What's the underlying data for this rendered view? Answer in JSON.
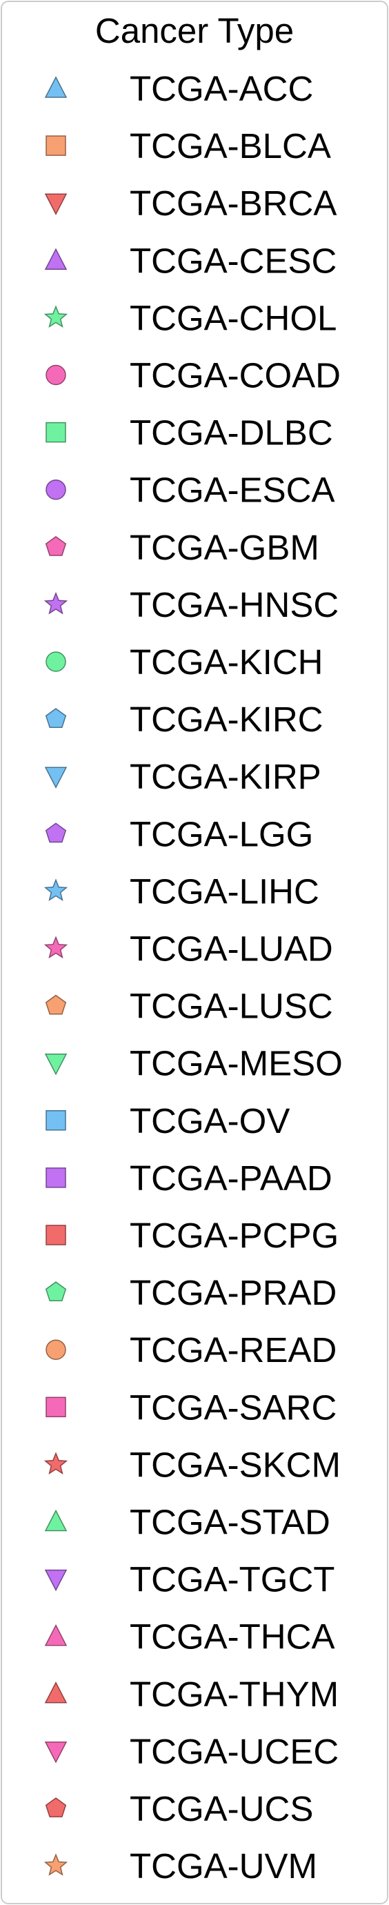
{
  "chart_data": {
    "type": "scatter",
    "legend": {
      "title": "Cancer Type",
      "entries": [
        {
          "label": "TCGA-ACC",
          "marker": "triangle-up",
          "color": "#74c0f2"
        },
        {
          "label": "TCGA-BLCA",
          "marker": "square",
          "color": "#f7a071"
        },
        {
          "label": "TCGA-BRCA",
          "marker": "triangle-down",
          "color": "#f26b6b"
        },
        {
          "label": "TCGA-CESC",
          "marker": "triangle-up",
          "color": "#c072f2"
        },
        {
          "label": "TCGA-CHOL",
          "marker": "star",
          "color": "#6ff2a0"
        },
        {
          "label": "TCGA-COAD",
          "marker": "circle",
          "color": "#f56ab8"
        },
        {
          "label": "TCGA-DLBC",
          "marker": "square",
          "color": "#6ff2a0"
        },
        {
          "label": "TCGA-ESCA",
          "marker": "circle",
          "color": "#c072f2"
        },
        {
          "label": "TCGA-GBM",
          "marker": "pentagon",
          "color": "#f56ab8"
        },
        {
          "label": "TCGA-HNSC",
          "marker": "star",
          "color": "#c072f2"
        },
        {
          "label": "TCGA-KICH",
          "marker": "circle",
          "color": "#6ff2a0"
        },
        {
          "label": "TCGA-KIRC",
          "marker": "pentagon",
          "color": "#74c0f2"
        },
        {
          "label": "TCGA-KIRP",
          "marker": "triangle-down",
          "color": "#74c0f2"
        },
        {
          "label": "TCGA-LGG",
          "marker": "pentagon",
          "color": "#c072f2"
        },
        {
          "label": "TCGA-LIHC",
          "marker": "star",
          "color": "#74c0f2"
        },
        {
          "label": "TCGA-LUAD",
          "marker": "star",
          "color": "#f56ab8"
        },
        {
          "label": "TCGA-LUSC",
          "marker": "pentagon",
          "color": "#f7a071"
        },
        {
          "label": "TCGA-MESO",
          "marker": "triangle-down",
          "color": "#6ff2a0"
        },
        {
          "label": "TCGA-OV",
          "marker": "square",
          "color": "#74c0f2"
        },
        {
          "label": "TCGA-PAAD",
          "marker": "square",
          "color": "#c072f2"
        },
        {
          "label": "TCGA-PCPG",
          "marker": "square",
          "color": "#f26b6b"
        },
        {
          "label": "TCGA-PRAD",
          "marker": "pentagon",
          "color": "#6ff2a0"
        },
        {
          "label": "TCGA-READ",
          "marker": "circle",
          "color": "#f7a071"
        },
        {
          "label": "TCGA-SARC",
          "marker": "square",
          "color": "#f56ab8"
        },
        {
          "label": "TCGA-SKCM",
          "marker": "star",
          "color": "#f26b6b"
        },
        {
          "label": "TCGA-STAD",
          "marker": "triangle-up",
          "color": "#6ff2a0"
        },
        {
          "label": "TCGA-TGCT",
          "marker": "triangle-down",
          "color": "#c072f2"
        },
        {
          "label": "TCGA-THCA",
          "marker": "triangle-up",
          "color": "#f56ab8"
        },
        {
          "label": "TCGA-THYM",
          "marker": "triangle-up",
          "color": "#f26b6b"
        },
        {
          "label": "TCGA-UCEC",
          "marker": "triangle-down",
          "color": "#f56ab8"
        },
        {
          "label": "TCGA-UCS",
          "marker": "pentagon",
          "color": "#f26b6b"
        },
        {
          "label": "TCGA-UVM",
          "marker": "star",
          "color": "#f7a071"
        }
      ]
    }
  }
}
